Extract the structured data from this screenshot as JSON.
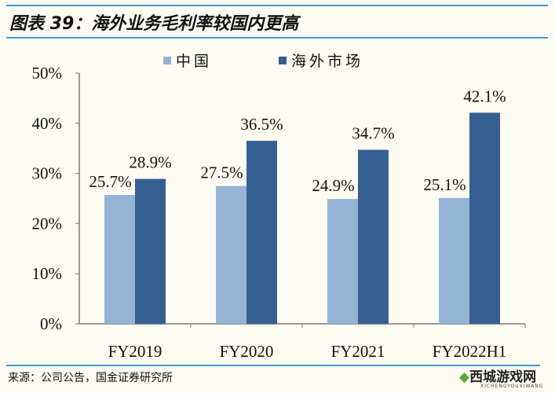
{
  "title": "图表 39：海外业务毛利率较国内更高",
  "source": "来源：公司公告，国金证券研究所",
  "watermark": {
    "text": "西城游戏网",
    "sub": "XICHENGYOUXIWANG"
  },
  "chart_data": {
    "type": "bar",
    "categories": [
      "FY2019",
      "FY2020",
      "FY2021",
      "FY2022H1"
    ],
    "series": [
      {
        "name": "中国",
        "values": [
          25.7,
          27.5,
          24.9,
          25.1
        ],
        "color": "#95b3d7"
      },
      {
        "name": "海外市场",
        "values": [
          28.9,
          36.5,
          34.7,
          42.1
        ],
        "color": "#365f91"
      }
    ],
    "data_labels": [
      [
        "25.7%",
        "27.5%",
        "24.9%",
        "25.1%"
      ],
      [
        "28.9%",
        "36.5%",
        "34.7%",
        "42.1%"
      ]
    ],
    "yticks": [
      "0%",
      "10%",
      "20%",
      "30%",
      "40%",
      "50%"
    ],
    "ylim": [
      0,
      50
    ],
    "legend": "top",
    "grid": false
  }
}
